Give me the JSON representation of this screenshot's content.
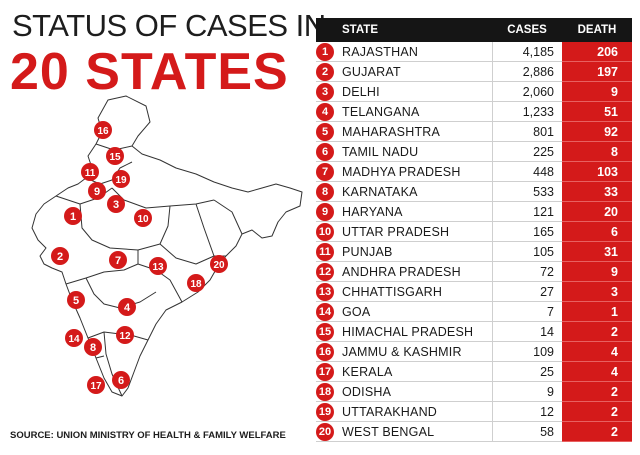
{
  "title": {
    "line1": "STATUS OF CASES IN",
    "line2": "20 STATES"
  },
  "source": "SOURCE: UNION MINISTRY OF HEALTH & FAMILY WELFARE",
  "colors": {
    "accent": "#d41a1a",
    "header": "#151515",
    "map_fill": "#ffffff",
    "map_stroke": "#333333"
  },
  "table": {
    "headers": {
      "state": "STATE",
      "cases": "CASES",
      "death": "DEATH"
    },
    "rows": [
      {
        "num": "1",
        "state": "RAJASTHAN",
        "cases": "4,185",
        "death": "206"
      },
      {
        "num": "2",
        "state": "GUJARAT",
        "cases": "2,886",
        "death": "197"
      },
      {
        "num": "3",
        "state": "DELHI",
        "cases": "2,060",
        "death": "9"
      },
      {
        "num": "4",
        "state": "TELANGANA",
        "cases": "1,233",
        "death": "51"
      },
      {
        "num": "5",
        "state": "MAHARASHTRA",
        "cases": "801",
        "death": "92"
      },
      {
        "num": "6",
        "state": "TAMIL NADU",
        "cases": "225",
        "death": "8"
      },
      {
        "num": "7",
        "state": "MADHYA PRADESH",
        "cases": "448",
        "death": "103"
      },
      {
        "num": "8",
        "state": "KARNATAKA",
        "cases": "533",
        "death": "33"
      },
      {
        "num": "9",
        "state": "HARYANA",
        "cases": "121",
        "death": "20"
      },
      {
        "num": "10",
        "state": "UTTAR PRADESH",
        "cases": "165",
        "death": "6"
      },
      {
        "num": "11",
        "state": "PUNJAB",
        "cases": "105",
        "death": "31"
      },
      {
        "num": "12",
        "state": "ANDHRA PRADESH",
        "cases": "72",
        "death": "9"
      },
      {
        "num": "13",
        "state": "CHHATTISGARH",
        "cases": "27",
        "death": "3"
      },
      {
        "num": "14",
        "state": "GOA",
        "cases": "7",
        "death": "1"
      },
      {
        "num": "15",
        "state": "HIMACHAL PRADESH",
        "cases": "14",
        "death": "2"
      },
      {
        "num": "16",
        "state": "JAMMU & KASHMIR",
        "cases": "109",
        "death": "4"
      },
      {
        "num": "17",
        "state": "KERALA",
        "cases": "25",
        "death": "4"
      },
      {
        "num": "18",
        "state": "ODISHA",
        "cases": "9",
        "death": "2"
      },
      {
        "num": "19",
        "state": "UTTARAKHAND",
        "cases": "12",
        "death": "2"
      },
      {
        "num": "20",
        "state": "WEST BENGAL",
        "cases": "58",
        "death": "2"
      }
    ]
  },
  "map": {
    "markers": [
      {
        "num": "1"
      },
      {
        "num": "2"
      },
      {
        "num": "3"
      },
      {
        "num": "4"
      },
      {
        "num": "5"
      },
      {
        "num": "6"
      },
      {
        "num": "7"
      },
      {
        "num": "8"
      },
      {
        "num": "9"
      },
      {
        "num": "10"
      },
      {
        "num": "11"
      },
      {
        "num": "12"
      },
      {
        "num": "13"
      },
      {
        "num": "14"
      },
      {
        "num": "15"
      },
      {
        "num": "16"
      },
      {
        "num": "17"
      },
      {
        "num": "18"
      },
      {
        "num": "19"
      },
      {
        "num": "20"
      }
    ]
  }
}
